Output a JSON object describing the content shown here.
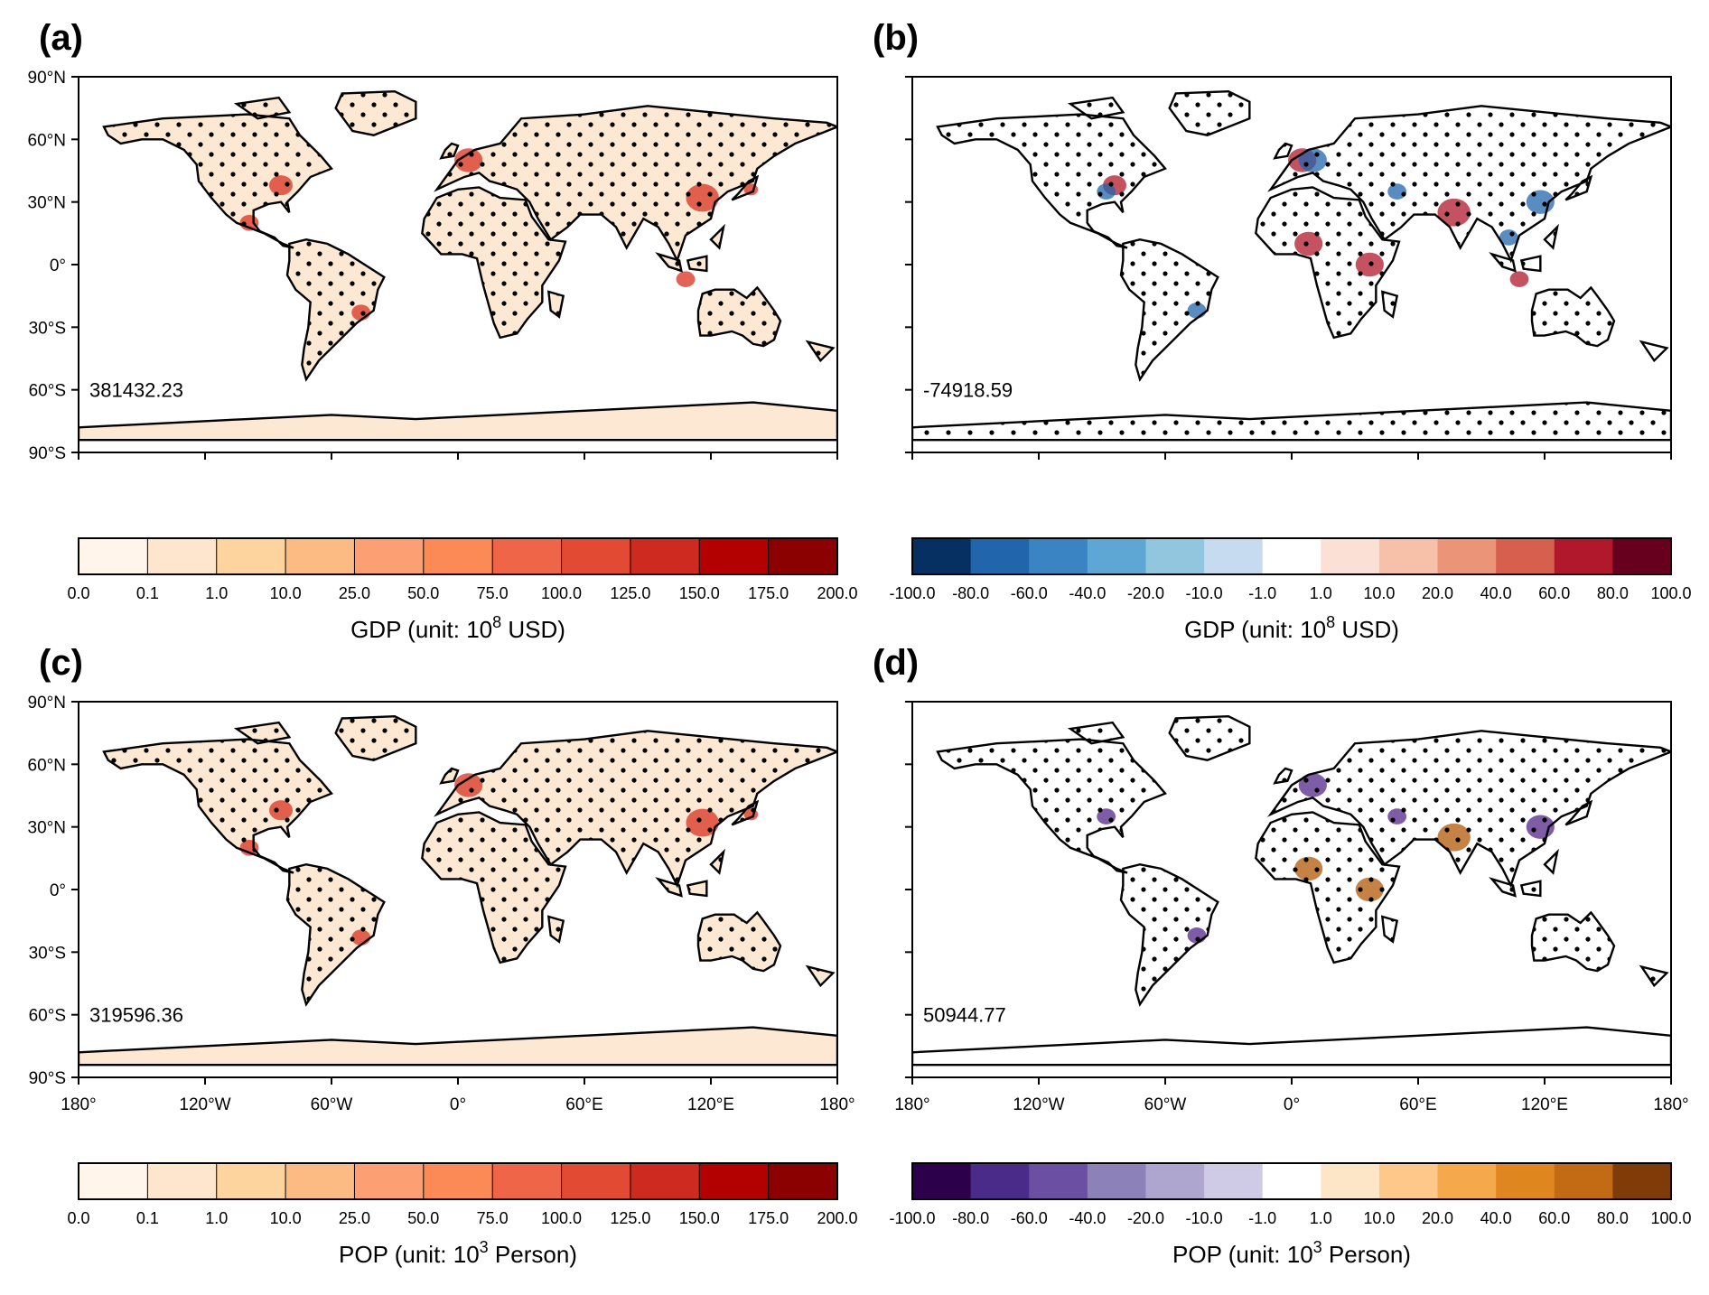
{
  "panels": [
    {
      "id": "a",
      "label": "(a)",
      "total": "381432.23",
      "colorbar": "gdp_seq",
      "land_fill": "#fde9d3",
      "show_lat": true,
      "show_lon": false,
      "antarctica_dots": false,
      "hot": "#d7301f"
    },
    {
      "id": "b",
      "label": "(b)",
      "total": "-74918.59",
      "colorbar": "gdp_div",
      "land_fill": "#ffffff",
      "show_lat": false,
      "show_lon": false,
      "antarctica_dots": true,
      "hot": "#b2182b",
      "cold": "#2166ac"
    },
    {
      "id": "c",
      "label": "(c)",
      "total": "319596.36",
      "colorbar": "pop_seq",
      "land_fill": "#fde9d3",
      "show_lat": true,
      "show_lon": true,
      "antarctica_dots": false,
      "hot": "#d7301f"
    },
    {
      "id": "d",
      "label": "(d)",
      "total": "50944.77",
      "colorbar": "pop_div",
      "land_fill": "#ffffff",
      "show_lat": false,
      "show_lon": true,
      "antarctica_dots": false,
      "hot": "#b35806",
      "cold": "#542788"
    }
  ],
  "lat_labels": [
    "90°N",
    "60°N",
    "30°N",
    "0°",
    "30°S",
    "60°S",
    "90°S"
  ],
  "lon_labels": [
    "180°",
    "120°W",
    "60°W",
    "0°",
    "60°E",
    "120°E",
    "180°"
  ],
  "colorbars": {
    "gdp_seq": {
      "title_prefix": "GDP (unit: 10",
      "title_sup": "8",
      "title_suffix": " USD)",
      "ticks": [
        "0.0",
        "0.1",
        "1.0",
        "10.0",
        "25.0",
        "50.0",
        "75.0",
        "100.0",
        "125.0",
        "150.0",
        "175.0",
        "200.0"
      ],
      "colors": [
        "#fff5eb",
        "#fee6ce",
        "#fdd49e",
        "#fdbb84",
        "#fc9f72",
        "#fb8a57",
        "#ef6548",
        "#e34a33",
        "#cf2a1f",
        "#b30000",
        "#8b0000"
      ]
    },
    "gdp_div": {
      "title_prefix": "GDP (unit: 10",
      "title_sup": "8",
      "title_suffix": " USD)",
      "ticks": [
        "-100.0",
        "-80.0",
        "-60.0",
        "-40.0",
        "-20.0",
        "-10.0",
        "-1.0",
        "1.0",
        "10.0",
        "20.0",
        "40.0",
        "60.0",
        "80.0",
        "100.0"
      ],
      "colors": [
        "#053061",
        "#2166ac",
        "#3b84c4",
        "#5ea6d4",
        "#92c5de",
        "#c6dbef",
        "#ffffff",
        "#fbe0d5",
        "#f7c0a8",
        "#ec9478",
        "#d6604d",
        "#b2182b",
        "#67001f"
      ]
    },
    "pop_seq": {
      "title_prefix": "POP (unit: 10",
      "title_sup": "3",
      "title_suffix": " Person)",
      "ticks": [
        "0.0",
        "0.1",
        "1.0",
        "10.0",
        "25.0",
        "50.0",
        "75.0",
        "100.0",
        "125.0",
        "150.0",
        "175.0",
        "200.0"
      ],
      "colors": [
        "#fff5eb",
        "#fee6ce",
        "#fdd49e",
        "#fdbb84",
        "#fc9f72",
        "#fb8a57",
        "#ef6548",
        "#e34a33",
        "#cf2a1f",
        "#b30000",
        "#8b0000"
      ]
    },
    "pop_div": {
      "title_prefix": "POP (unit: 10",
      "title_sup": "3",
      "title_suffix": " Person)",
      "ticks": [
        "-100.0",
        "-80.0",
        "-60.0",
        "-40.0",
        "-20.0",
        "-10.0",
        "-1.0",
        "1.0",
        "10.0",
        "20.0",
        "40.0",
        "60.0",
        "80.0",
        "100.0"
      ],
      "colors": [
        "#2d004b",
        "#4a2b8a",
        "#6a4fa3",
        "#8c82b9",
        "#aea6cf",
        "#cfcbe6",
        "#ffffff",
        "#fde6c8",
        "#fdc88a",
        "#f6a94b",
        "#e0861f",
        "#c26b14",
        "#7f3b08"
      ]
    }
  },
  "hotspots": [
    {
      "lon": -84,
      "lat": 38,
      "panels": [
        "a",
        "b",
        "c"
      ],
      "r": 5
    },
    {
      "lon": -99,
      "lat": 20,
      "panels": [
        "a",
        "c"
      ],
      "r": 4
    },
    {
      "lon": -46,
      "lat": -23,
      "panels": [
        "a",
        "c"
      ],
      "r": 4
    },
    {
      "lon": 5,
      "lat": 50,
      "panels": [
        "a",
        "b",
        "c"
      ],
      "r": 6
    },
    {
      "lon": 116,
      "lat": 32,
      "panels": [
        "a",
        "c"
      ],
      "r": 7
    },
    {
      "lon": 108,
      "lat": -7,
      "panels": [
        "a",
        "b"
      ],
      "r": 4
    },
    {
      "lon": 77,
      "lat": 25,
      "panels": [
        "b",
        "d"
      ],
      "r": 7
    },
    {
      "lon": 8,
      "lat": 10,
      "panels": [
        "b",
        "d"
      ],
      "r": 6
    },
    {
      "lon": 37,
      "lat": 0,
      "panels": [
        "b",
        "d"
      ],
      "r": 6
    },
    {
      "lon": 139,
      "lat": 36,
      "panels": [
        "a",
        "c"
      ],
      "r": 3
    }
  ],
  "coldspots": [
    {
      "lon": 118,
      "lat": 30,
      "panels": [
        "b",
        "d"
      ],
      "r": 6
    },
    {
      "lon": 10,
      "lat": 50,
      "panels": [
        "b",
        "d"
      ],
      "r": 6
    },
    {
      "lon": -88,
      "lat": 35,
      "panels": [
        "b",
        "d"
      ],
      "r": 4
    },
    {
      "lon": -45,
      "lat": -22,
      "panels": [
        "b",
        "d"
      ],
      "r": 4
    },
    {
      "lon": 50,
      "lat": 35,
      "panels": [
        "b",
        "d"
      ],
      "r": 4
    },
    {
      "lon": 103,
      "lat": 13,
      "panels": [
        "b"
      ],
      "r": 4
    }
  ]
}
